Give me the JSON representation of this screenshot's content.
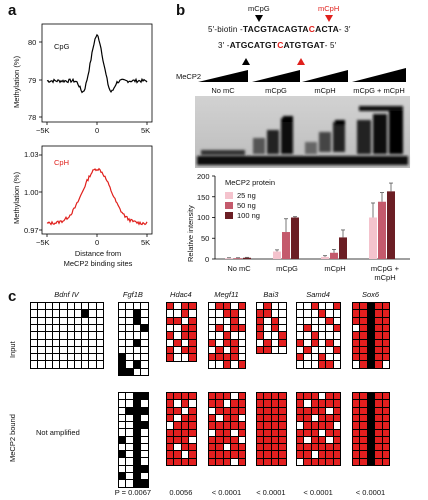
{
  "panel_a": {
    "label": "a",
    "top": {
      "name": "CpG",
      "ylabel": "Methylation (%)",
      "y_ticks": [
        "80",
        "79",
        "78"
      ],
      "ylim": [
        78,
        80
      ],
      "x_ticks": [
        "−5K",
        "0",
        "5K"
      ],
      "color": "#000000"
    },
    "bottom": {
      "name": "CpH",
      "ylabel": "Methylation (%)",
      "y_ticks": [
        "1.03",
        "1.00",
        "0.97"
      ],
      "ylim": [
        0.97,
        1.03
      ],
      "x_ticks": [
        "−5K",
        "0",
        "5K"
      ],
      "color": "#e0201c"
    },
    "xlabel_line1": "Distance from",
    "xlabel_line2": "MeCP2 binding sites"
  },
  "panel_b": {
    "label": "b",
    "probe": {
      "mcpg_label": "mCpG",
      "mcph_label": "mCpH",
      "mcph_color": "#e0201c",
      "top_strand_prefix": "5′-biotin -",
      "top_strand_a": "TACGTACAGTA",
      "top_strand_b": "C",
      "top_strand_c": "ACTA",
      "top_strand_suffix": "- 3′",
      "bottom_strand_prefix": "3′ -",
      "bottom_strand_a": "ATGCATGT",
      "bottom_strand_b": "C",
      "bottom_strand_c": "ATGTGAT",
      "bottom_strand_suffix": "- 5′"
    },
    "gel": {
      "protein_label": "MeCP2",
      "lanes": [
        "No mC",
        "mCpG",
        "mCpH",
        "mCpG + mCpH"
      ]
    },
    "chart_data": {
      "type": "bar",
      "title": "MeCP2 protein",
      "ylabel": "Relative intensity",
      "ylim": [
        0,
        200
      ],
      "y_ticks": [
        "200",
        "150",
        "100",
        "50",
        "0"
      ],
      "categories": [
        "No mC",
        "mCpG",
        "mCpH",
        "mCpG +\nmCpH"
      ],
      "category_line1": [
        "No mC",
        "mCpG",
        "mCpH",
        "mCpG +"
      ],
      "category_line2": [
        "",
        "",
        "",
        "mCpH"
      ],
      "series": [
        {
          "name": "25 ng",
          "color": "#f4c3cd",
          "values": [
            2,
            18,
            5,
            100
          ],
          "errors": [
            1,
            4,
            3,
            35
          ]
        },
        {
          "name": "50 ng",
          "color": "#c45a6c",
          "values": [
            2,
            65,
            15,
            138
          ],
          "errors": [
            1,
            32,
            8,
            22
          ]
        },
        {
          "name": "100 ng",
          "color": "#6b1e24",
          "values": [
            3,
            100,
            52,
            163
          ],
          "errors": [
            1,
            2,
            18,
            20
          ]
        }
      ]
    }
  },
  "panel_c": {
    "label": "c",
    "input_label": "Input",
    "bound_label": "MeCP2 bound",
    "not_amplified": "Not amplified",
    "p_prefix": "P = ",
    "genes": [
      {
        "name": "Bdnf IV",
        "cols": 10,
        "color": "#000000",
        "input": [
          "0000000000",
          "0000000100",
          "0000000000",
          "0000000000",
          "0000000000",
          "0000000000",
          "0000000000",
          "0000000000",
          "0000000000"
        ],
        "bound": null,
        "p": ""
      },
      {
        "name": "Fgf1B",
        "cols": 4,
        "color": "#000000",
        "input": [
          "0000",
          "0010",
          "0010",
          "0001",
          "0000",
          "0010",
          "0000",
          "1000",
          "1010",
          "1100"
        ],
        "bound": [
          "0011",
          "0010",
          "0111",
          "0010",
          "0011",
          "0010",
          "1010",
          "0010",
          "1010",
          "0010",
          "0011",
          "1010",
          "0011"
        ],
        "p": "0.0067"
      },
      {
        "name": "Hdac4",
        "cols": 4,
        "color": "#e31f1f",
        "input": [
          "1011",
          "0010",
          "1101",
          "0011",
          "1011",
          "0101",
          "1011",
          "1001"
        ],
        "bound": [
          "1111",
          "1010",
          "1101",
          "1011",
          "0111",
          "1111",
          "1110",
          "1011",
          "1101",
          "1111"
        ],
        "p": "0.0056"
      },
      {
        "name": "Megf11",
        "cols": 5,
        "color": "#e31f1f",
        "input": [
          "01101",
          "00110",
          "00010",
          "01011",
          "00100",
          "10110",
          "01010",
          "11110",
          "00101"
        ],
        "bound": [
          "11101",
          "11011",
          "01111",
          "10110",
          "11111",
          "01101",
          "11110",
          "11011",
          "11111",
          "11101"
        ],
        "p": "< 0.0001"
      },
      {
        "name": "Bai3",
        "cols": 4,
        "color": "#e31f1f",
        "input": [
          "0100",
          "1100",
          "1010",
          "1010",
          "1001",
          "0101",
          "1100"
        ],
        "bound": [
          "1111",
          "1111",
          "1111",
          "1111",
          "1111",
          "1111",
          "1111",
          "1111",
          "1111",
          "1111"
        ],
        "p": "< 0.0001"
      },
      {
        "name": "Samd4",
        "cols": 6,
        "color": "#e31f1f",
        "input": [
          "001001",
          "000100",
          "000010",
          "010001",
          "001000",
          "101010",
          "010001",
          "100100",
          "000110"
        ],
        "bound": [
          "111011",
          "101111",
          "111101",
          "110111",
          "011110",
          "111011",
          "101101",
          "111111",
          "110111",
          "011111"
        ],
        "p": "< 0.0001"
      },
      {
        "name": "Sox6",
        "cols": 5,
        "color": "#e31f1f",
        "input": [
          "11211",
          "11211",
          "11211",
          "01211",
          "11211",
          "11211",
          "11211",
          "11211",
          "01210"
        ],
        "bound": [
          "11211",
          "11211",
          "11211",
          "11211",
          "11211",
          "11211",
          "11211",
          "11211",
          "11211",
          "11211"
        ],
        "p": "< 0.0001"
      }
    ]
  }
}
